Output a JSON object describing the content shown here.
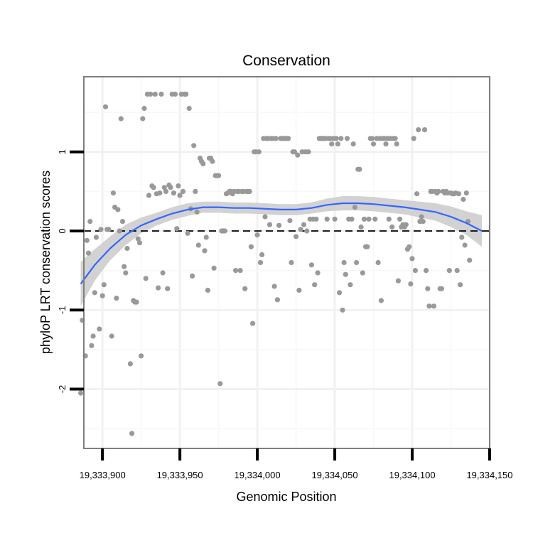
{
  "chart_data": {
    "type": "scatter",
    "title": "Conservation",
    "xlabel": "Genomic Position",
    "ylabel": "phyloP LRT conservation scores",
    "xlim": [
      19333888,
      19334150
    ],
    "ylim": [
      -2.75,
      1.95
    ],
    "x_ticks": [
      19333900,
      19333950,
      19334000,
      19334050,
      19334100,
      19334150
    ],
    "x_tick_labels": [
      "19,333,900",
      "19,333,950",
      "19,334,000",
      "19,334,050",
      "19,334,100",
      "19,334,150"
    ],
    "y_ticks": [
      -2,
      -1,
      0,
      1
    ],
    "y_tick_labels": [
      "-2",
      "-1",
      "0",
      "1"
    ],
    "reference_line": {
      "y": 0,
      "style": "dashed",
      "color": "#000000"
    },
    "grid": true,
    "colors": {
      "points": "#999999",
      "smooth": "#3366ff",
      "band": "#d0d0d0",
      "border": "#7f7f7f"
    },
    "smooth": {
      "method": "loess",
      "x": [
        19333886,
        19333895,
        19333905,
        19333915,
        19333925,
        19333935,
        19333945,
        19333955,
        19333965,
        19333975,
        19333985,
        19333995,
        19334005,
        19334015,
        19334025,
        19334035,
        19334045,
        19334055,
        19334065,
        19334075,
        19334085,
        19334095,
        19334105,
        19334115,
        19334125,
        19334135,
        19334145
      ],
      "y": [
        -0.67,
        -0.43,
        -0.22,
        -0.05,
        0.07,
        0.15,
        0.22,
        0.27,
        0.3,
        0.3,
        0.29,
        0.29,
        0.28,
        0.27,
        0.27,
        0.29,
        0.33,
        0.35,
        0.35,
        0.34,
        0.32,
        0.3,
        0.27,
        0.24,
        0.18,
        0.1,
        0.0
      ],
      "ymin": [
        -0.95,
        -0.63,
        -0.37,
        -0.18,
        -0.03,
        0.07,
        0.14,
        0.19,
        0.23,
        0.23,
        0.22,
        0.22,
        0.21,
        0.2,
        0.2,
        0.22,
        0.25,
        0.26,
        0.26,
        0.25,
        0.23,
        0.21,
        0.17,
        0.13,
        0.05,
        -0.05,
        -0.2
      ],
      "ymax": [
        -0.39,
        -0.23,
        -0.07,
        0.08,
        0.17,
        0.23,
        0.3,
        0.35,
        0.37,
        0.37,
        0.36,
        0.36,
        0.35,
        0.34,
        0.34,
        0.36,
        0.41,
        0.44,
        0.44,
        0.43,
        0.41,
        0.39,
        0.37,
        0.35,
        0.31,
        0.25,
        0.2
      ]
    },
    "points": [
      [
        19333886,
        -2.05
      ],
      [
        19333887,
        -1.13
      ],
      [
        19333889,
        -1.58
      ],
      [
        19333890,
        -0.12
      ],
      [
        19333891,
        -0.28
      ],
      [
        19333892,
        0.12
      ],
      [
        19333893,
        -1.45
      ],
      [
        19333894,
        -1.33
      ],
      [
        19333895,
        -0.78
      ],
      [
        19333896,
        -0.08
      ],
      [
        19333898,
        -1.24
      ],
      [
        19333899,
        0.02
      ],
      [
        19333900,
        -0.82
      ],
      [
        19333901,
        -0.68
      ],
      [
        19333902,
        1.57
      ],
      [
        19333903,
        0.02
      ],
      [
        19333904,
        0.02
      ],
      [
        19333906,
        -1.33
      ],
      [
        19333907,
        0.48
      ],
      [
        19333908,
        0.3
      ],
      [
        19333909,
        -0.85
      ],
      [
        19333910,
        0.27
      ],
      [
        19333911,
        0.0
      ],
      [
        19333912,
        1.42
      ],
      [
        19333913,
        0.12
      ],
      [
        19333914,
        -0.45
      ],
      [
        19333915,
        -0.53
      ],
      [
        19333916,
        -0.22
      ],
      [
        19333918,
        -1.68
      ],
      [
        19333919,
        -2.56
      ],
      [
        19333920,
        -0.88
      ],
      [
        19333921,
        -0.9
      ],
      [
        19333922,
        -0.9
      ],
      [
        19333923,
        -0.1
      ],
      [
        19333924,
        -0.15
      ],
      [
        19333925,
        -1.58
      ],
      [
        19333926,
        1.42
      ],
      [
        19333927,
        1.55
      ],
      [
        19333928,
        -0.6
      ],
      [
        19333929,
        1.73
      ],
      [
        19333930,
        0.45
      ],
      [
        19333931,
        1.73
      ],
      [
        19333932,
        0.57
      ],
      [
        19333933,
        0.55
      ],
      [
        19333934,
        1.73
      ],
      [
        19333935,
        0.47
      ],
      [
        19333936,
        -0.72
      ],
      [
        19333937,
        0.48
      ],
      [
        19333938,
        1.73
      ],
      [
        19333939,
        -0.53
      ],
      [
        19333940,
        0.55
      ],
      [
        19333941,
        0.5
      ],
      [
        19333942,
        -0.73
      ],
      [
        19333943,
        0.58
      ],
      [
        19333944,
        0.55
      ],
      [
        19333945,
        1.73
      ],
      [
        19333946,
        0.48
      ],
      [
        19333947,
        1.73
      ],
      [
        19333948,
        0.03
      ],
      [
        19333949,
        0.57
      ],
      [
        19333950,
        0.45
      ],
      [
        19333951,
        1.73
      ],
      [
        19333952,
        0.5
      ],
      [
        19333953,
        1.73
      ],
      [
        19333954,
        1.73
      ],
      [
        19333955,
        -0.03
      ],
      [
        19333956,
        1.55
      ],
      [
        19333957,
        0.28
      ],
      [
        19333958,
        -0.57
      ],
      [
        19333959,
        1.08
      ],
      [
        19333960,
        0.5
      ],
      [
        19333961,
        0.24
      ],
      [
        19333962,
        -0.18
      ],
      [
        19333963,
        0.92
      ],
      [
        19333964,
        0.88
      ],
      [
        19333965,
        0.85
      ],
      [
        19333966,
        -0.25
      ],
      [
        19333967,
        -0.08
      ],
      [
        19333968,
        -0.75
      ],
      [
        19333969,
        0.92
      ],
      [
        19333970,
        0.92
      ],
      [
        19333971,
        0.88
      ],
      [
        19333972,
        -0.47
      ],
      [
        19333973,
        0.7
      ],
      [
        19333974,
        0.7
      ],
      [
        19333975,
        0.7
      ],
      [
        19333976,
        -1.93
      ],
      [
        19333977,
        0.0
      ],
      [
        19333978,
        0.0
      ],
      [
        19333979,
        0.0
      ],
      [
        19333980,
        0.47
      ],
      [
        19333981,
        0.48
      ],
      [
        19333982,
        0.5
      ],
      [
        19333983,
        0.5
      ],
      [
        19333984,
        0.47
      ],
      [
        19333985,
        0.5
      ],
      [
        19333986,
        -0.5
      ],
      [
        19333987,
        0.5
      ],
      [
        19333988,
        0.5
      ],
      [
        19333989,
        -0.5
      ],
      [
        19333990,
        0.5
      ],
      [
        19333991,
        0.5
      ],
      [
        19333992,
        -0.73
      ],
      [
        19333993,
        0.5
      ],
      [
        19333994,
        0.5
      ],
      [
        19333995,
        0.5
      ],
      [
        19333996,
        -0.2
      ],
      [
        19333997,
        -1.17
      ],
      [
        19333998,
        1.0
      ],
      [
        19333999,
        1.0
      ],
      [
        19334000,
        -0.05
      ],
      [
        19334001,
        1.0
      ],
      [
        19334002,
        -0.4
      ],
      [
        19334003,
        -0.3
      ],
      [
        19334004,
        1.17
      ],
      [
        19334005,
        0.18
      ],
      [
        19334006,
        1.17
      ],
      [
        19334007,
        1.17
      ],
      [
        19334008,
        0.08
      ],
      [
        19334009,
        1.17
      ],
      [
        19334010,
        1.17
      ],
      [
        19334011,
        -0.7
      ],
      [
        19334012,
        1.17
      ],
      [
        19334013,
        -0.87
      ],
      [
        19334014,
        0.07
      ],
      [
        19334015,
        1.17
      ],
      [
        19334016,
        1.17
      ],
      [
        19334017,
        1.17
      ],
      [
        19334018,
        1.17
      ],
      [
        19334019,
        1.17
      ],
      [
        19334020,
        1.17
      ],
      [
        19334021,
        0.13
      ],
      [
        19334022,
        -0.4
      ],
      [
        19334023,
        1.0
      ],
      [
        19334024,
        1.0
      ],
      [
        19334025,
        -0.07
      ],
      [
        19334026,
        0.96
      ],
      [
        19334027,
        -0.75
      ],
      [
        19334028,
        0.02
      ],
      [
        19334029,
        1.0
      ],
      [
        19334030,
        0.08
      ],
      [
        19334031,
        1.0
      ],
      [
        19334032,
        0.0
      ],
      [
        19334033,
        1.0
      ],
      [
        19334034,
        0.15
      ],
      [
        19334035,
        -0.43
      ],
      [
        19334036,
        0.15
      ],
      [
        19334037,
        -0.68
      ],
      [
        19334038,
        0.15
      ],
      [
        19334039,
        -0.53
      ],
      [
        19334040,
        1.17
      ],
      [
        19334041,
        1.17
      ],
      [
        19334042,
        1.17
      ],
      [
        19334043,
        1.17
      ],
      [
        19334044,
        1.17
      ],
      [
        19334045,
        0.15
      ],
      [
        19334046,
        1.17
      ],
      [
        19334047,
        1.17
      ],
      [
        19334048,
        1.1
      ],
      [
        19334049,
        1.17
      ],
      [
        19334050,
        0.15
      ],
      [
        19334051,
        1.17
      ],
      [
        19334052,
        1.1
      ],
      [
        19334053,
        -0.78
      ],
      [
        19334054,
        1.17
      ],
      [
        19334055,
        -1.0
      ],
      [
        19334056,
        -0.4
      ],
      [
        19334057,
        -0.55
      ],
      [
        19334058,
        1.17
      ],
      [
        19334059,
        0.15
      ],
      [
        19334060,
        -0.68
      ],
      [
        19334061,
        0.15
      ],
      [
        19334062,
        1.1
      ],
      [
        19334063,
        0.3
      ],
      [
        19334064,
        -0.4
      ],
      [
        19334065,
        0.78
      ],
      [
        19334066,
        0.78
      ],
      [
        19334067,
        0.05
      ],
      [
        19334068,
        -0.53
      ],
      [
        19334069,
        0.15
      ],
      [
        19334070,
        -0.2
      ],
      [
        19334071,
        -0.2
      ],
      [
        19334072,
        0.15
      ],
      [
        19334073,
        1.17
      ],
      [
        19334074,
        1.17
      ],
      [
        19334075,
        1.1
      ],
      [
        19334076,
        0.15
      ],
      [
        19334077,
        1.17
      ],
      [
        19334078,
        -0.4
      ],
      [
        19334079,
        1.17
      ],
      [
        19334080,
        -0.88
      ],
      [
        19334081,
        1.17
      ],
      [
        19334082,
        1.17
      ],
      [
        19334083,
        1.1
      ],
      [
        19334084,
        1.17
      ],
      [
        19334085,
        0.15
      ],
      [
        19334086,
        1.17
      ],
      [
        19334087,
        0.05
      ],
      [
        19334088,
        1.17
      ],
      [
        19334089,
        1.17
      ],
      [
        19334090,
        1.1
      ],
      [
        19334091,
        -0.63
      ],
      [
        19334092,
        0.15
      ],
      [
        19334093,
        0.05
      ],
      [
        19334094,
        0.08
      ],
      [
        19334095,
        0.05
      ],
      [
        19334096,
        0.08
      ],
      [
        19334097,
        -0.23
      ],
      [
        19334098,
        -0.2
      ],
      [
        19334099,
        -0.67
      ],
      [
        19334100,
        -0.35
      ],
      [
        19334101,
        1.17
      ],
      [
        19334102,
        -0.5
      ],
      [
        19334103,
        0.47
      ],
      [
        19334104,
        1.28
      ],
      [
        19334105,
        0.12
      ],
      [
        19334106,
        0.18
      ],
      [
        19334107,
        0.12
      ],
      [
        19334108,
        1.28
      ],
      [
        19334109,
        -0.5
      ],
      [
        19334110,
        -0.73
      ],
      [
        19334111,
        -0.95
      ],
      [
        19334112,
        0.5
      ],
      [
        19334113,
        0.5
      ],
      [
        19334114,
        -0.95
      ],
      [
        19334115,
        0.5
      ],
      [
        19334116,
        0.48
      ],
      [
        19334117,
        0.5
      ],
      [
        19334118,
        -0.73
      ],
      [
        19334119,
        -0.73
      ],
      [
        19334120,
        0.5
      ],
      [
        19334121,
        0.48
      ],
      [
        19334122,
        0.5
      ],
      [
        19334123,
        0.48
      ],
      [
        19334124,
        -0.5
      ],
      [
        19334125,
        0.48
      ],
      [
        19334126,
        0.47
      ],
      [
        19334127,
        0.47
      ],
      [
        19334128,
        0.48
      ],
      [
        19334129,
        -0.5
      ],
      [
        19334130,
        0.47
      ],
      [
        19334131,
        -0.68
      ],
      [
        19334132,
        -0.08
      ],
      [
        19334133,
        0.4
      ],
      [
        19334134,
        -0.18
      ],
      [
        19334135,
        0.48
      ],
      [
        19334136,
        0.12
      ],
      [
        19334137,
        -0.37
      ]
    ]
  }
}
